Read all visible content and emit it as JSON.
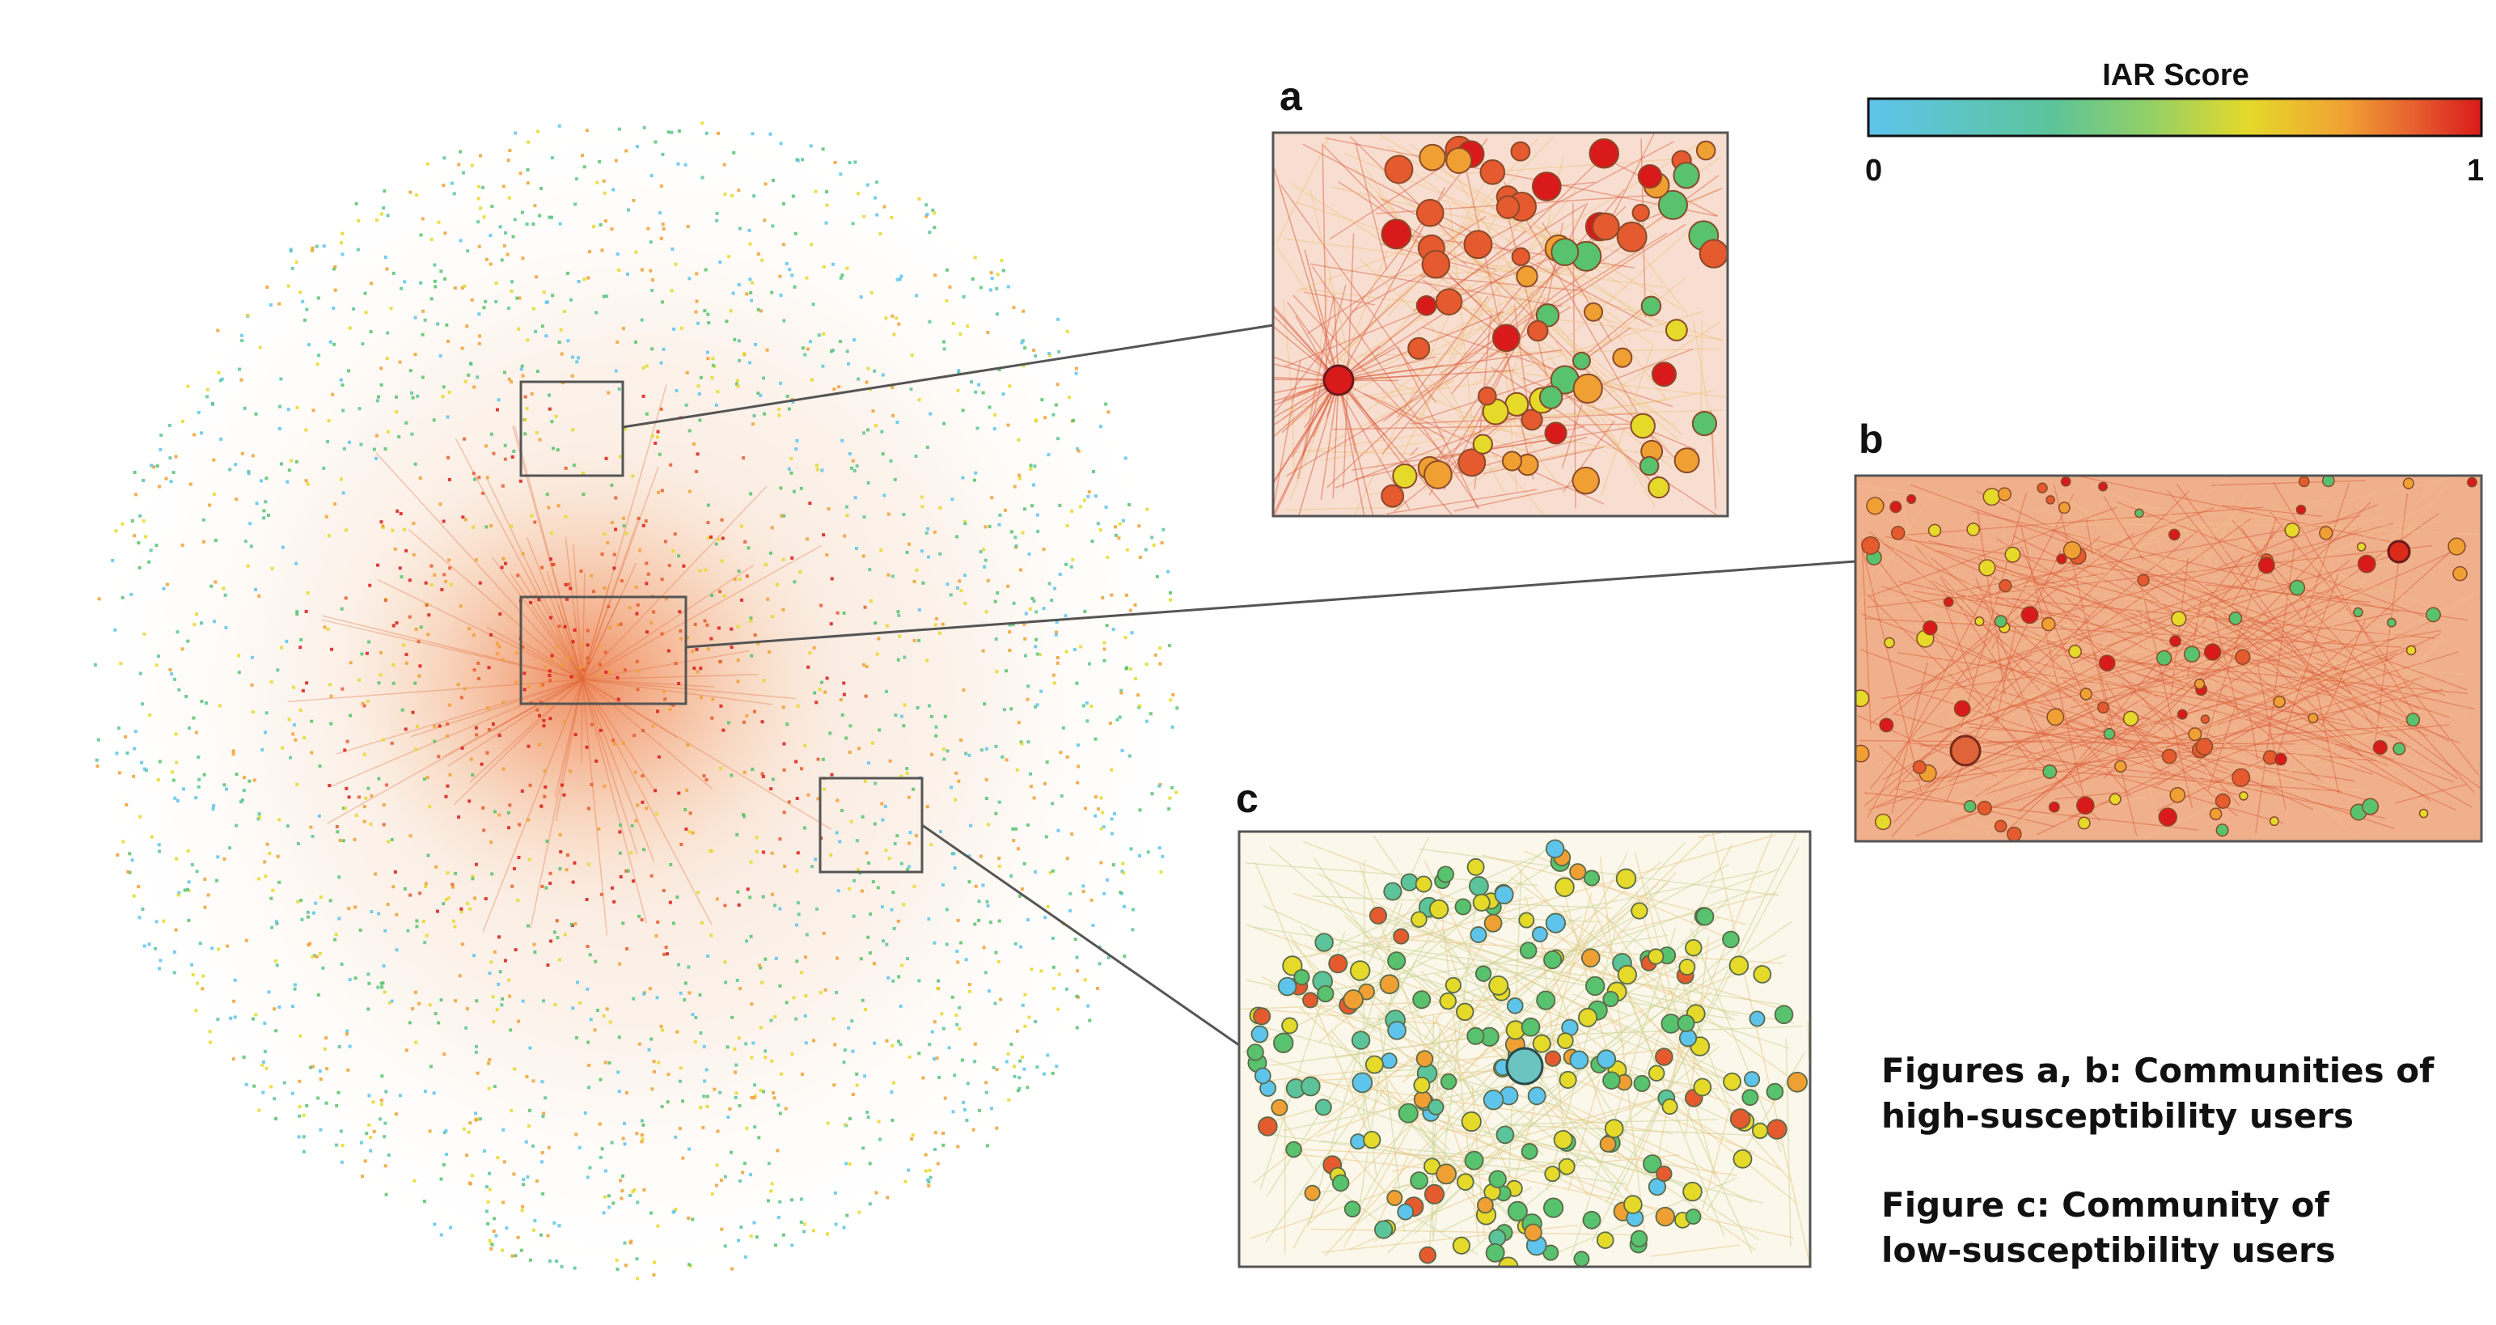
{
  "colorbar": {
    "title": "IAR Score",
    "min_label": "0",
    "max_label": "1",
    "colors": [
      "#5ec4ec",
      "#5cc49a",
      "#58c26e",
      "#e5d92a",
      "#f0a033",
      "#e55a2e",
      "#d91a1a"
    ]
  },
  "panels": {
    "a": {
      "label": "a"
    },
    "b": {
      "label": "b"
    },
    "c": {
      "label": "c"
    }
  },
  "captions": {
    "ab_line1": "Figures a, b: Communities of",
    "ab_line2": "high-susceptibility users",
    "c_line1": "Figure c: Community of",
    "c_line2": "low-susceptibility users"
  },
  "palette": {
    "edge_hot": "#e06a3a",
    "edge_warm": "#f0b48a",
    "edge_cool": "#d7d29a",
    "frame": "#555555"
  }
}
